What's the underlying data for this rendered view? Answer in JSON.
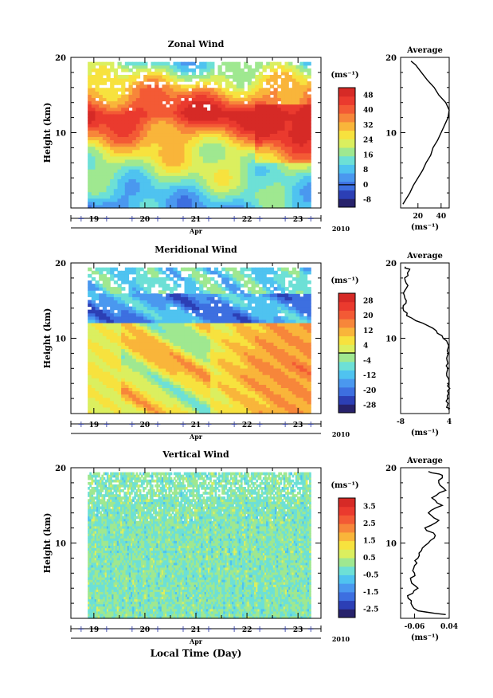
{
  "figure": {
    "xlabel": "Local Time (Day)",
    "month_label": "Apr",
    "year_label": "2010",
    "x_ticks": [
      "19",
      "20",
      "21",
      "22",
      "23"
    ],
    "y_ticks": [
      "10",
      "20"
    ],
    "unit_label": "(ms⁻¹)",
    "avg_title": "Average"
  },
  "chart_data": [
    {
      "type": "heatmap",
      "title": "Zonal Wind",
      "ylabel": "Height (km)",
      "xlabel": "Local Time (Day)",
      "x_range": [
        18.55,
        23.45
      ],
      "data_x_range": [
        18.88,
        23.25
      ],
      "ylim": [
        0,
        20
      ],
      "colorbar": {
        "levels": [
          -8,
          0,
          8,
          16,
          24,
          32,
          40,
          48
        ],
        "range": [
          -12,
          52
        ],
        "zero_line": 0,
        "colors": [
          "#27226b",
          "#2c3fb5",
          "#3d6fe0",
          "#4a98ef",
          "#4fc3f0",
          "#6de0d6",
          "#9fe890",
          "#dbef5f",
          "#f7e23e",
          "#f9b53a",
          "#f7863a",
          "#f35a35",
          "#ea3a2e",
          "#d62a26"
        ]
      },
      "profile": {
        "title": "Average",
        "xlabel": "(ms⁻¹)",
        "xlim": [
          5,
          47
        ],
        "x_ticks": [
          20,
          40
        ],
        "heights": [
          0.5,
          1,
          2,
          3,
          4,
          5,
          6,
          7,
          8,
          9,
          10,
          11,
          12,
          13,
          14,
          15,
          16,
          17,
          18,
          19,
          19.5
        ],
        "values": [
          7,
          9,
          13,
          16,
          20,
          24,
          27,
          31,
          33,
          37,
          40,
          43,
          46,
          47,
          44,
          38,
          34,
          28,
          23,
          18,
          14
        ]
      }
    },
    {
      "type": "heatmap",
      "title": "Meridional Wind",
      "ylabel": "Height (km)",
      "xlabel": "Local Time (Day)",
      "x_range": [
        18.55,
        23.45
      ],
      "data_x_range": [
        18.88,
        23.25
      ],
      "ylim": [
        0,
        20
      ],
      "colorbar": {
        "levels": [
          -28,
          -20,
          -12,
          -4,
          4,
          12,
          20,
          28
        ],
        "range": [
          -32,
          32
        ],
        "zero_line": 0,
        "colors": [
          "#27226b",
          "#2c3fb5",
          "#3d6fe0",
          "#4a98ef",
          "#4fc3f0",
          "#6de0d6",
          "#9fe890",
          "#dbef5f",
          "#f7e23e",
          "#f9b53a",
          "#f7863a",
          "#f35a35",
          "#ea3a2e",
          "#d62a26"
        ]
      },
      "profile": {
        "title": "Average",
        "xlabel": "(ms⁻¹)",
        "xlim": [
          -8,
          4
        ],
        "x_ticks": [
          -8,
          4
        ],
        "heights": [
          0.5,
          1,
          2,
          3,
          4,
          5,
          6,
          7,
          8,
          9,
          10,
          11,
          12,
          13,
          14,
          15,
          16,
          17,
          18,
          19,
          19.5
        ],
        "values": [
          3.8,
          3.5,
          3.7,
          3.6,
          3.9,
          3.4,
          3.7,
          3.5,
          3.8,
          3.9,
          2.5,
          0.8,
          -2.5,
          -6.5,
          -7.4,
          -6.6,
          -7.3,
          -6.2,
          -7.0,
          -5.9,
          -6.8
        ]
      }
    },
    {
      "type": "heatmap",
      "title": "Vertical Wind",
      "ylabel": "Height (km)",
      "xlabel": "Local Time (Day)",
      "x_range": [
        18.55,
        23.45
      ],
      "data_x_range": [
        18.88,
        23.25
      ],
      "ylim": [
        0,
        20
      ],
      "colorbar": {
        "levels": [
          -2.5,
          -1.5,
          -0.5,
          0.5,
          1.5,
          2.5,
          3.5
        ],
        "range": [
          -3,
          4
        ],
        "zero_line": null,
        "colors": [
          "#27226b",
          "#2c3fb5",
          "#3d6fe0",
          "#4a98ef",
          "#4fc3f0",
          "#6de0d6",
          "#9fe890",
          "#dbef5f",
          "#f7e23e",
          "#f9b53a",
          "#f7863a",
          "#f35a35",
          "#ea3a2e",
          "#d62a26"
        ]
      },
      "profile": {
        "title": "Average",
        "xlabel": "(ms⁻¹)",
        "xlim": [
          -0.1,
          0.04
        ],
        "x_ticks": [
          -0.06,
          0.04
        ],
        "tick_labels": [
          "-0.06",
          "0.04"
        ],
        "heights": [
          0.5,
          1,
          2,
          3,
          4,
          5,
          6,
          7,
          8,
          9,
          10,
          11,
          12,
          13,
          14,
          15,
          16,
          17,
          18,
          19,
          19.5
        ],
        "values": [
          0.03,
          -0.05,
          -0.07,
          -0.08,
          -0.05,
          -0.07,
          -0.06,
          -0.06,
          -0.05,
          -0.04,
          -0.02,
          0.0,
          -0.03,
          0.01,
          -0.02,
          0.02,
          -0.01,
          0.03,
          0.01,
          0.02,
          -0.02
        ]
      }
    }
  ]
}
